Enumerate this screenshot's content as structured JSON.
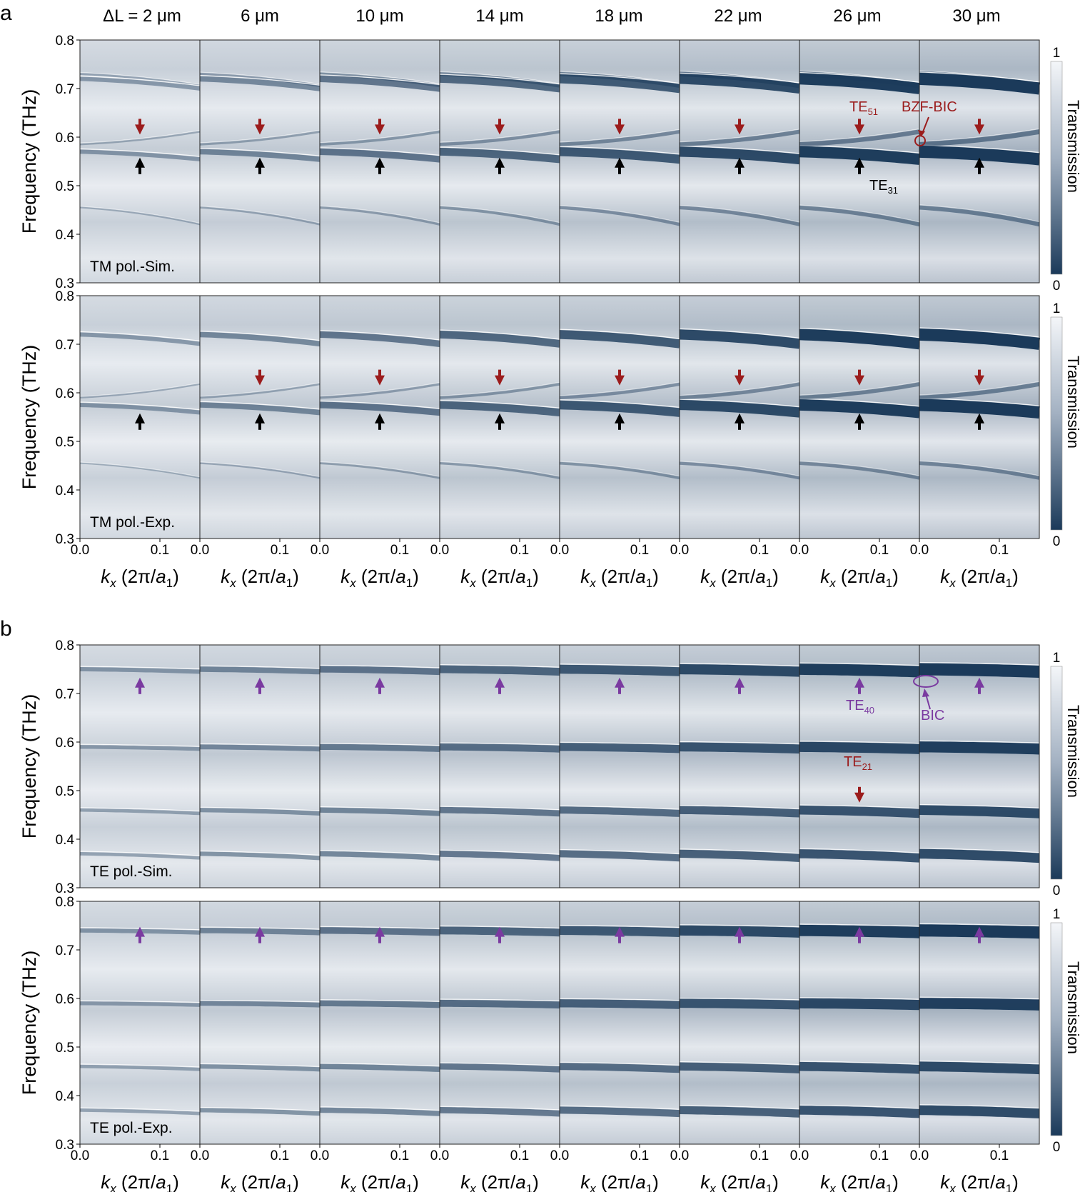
{
  "panel_letters": [
    "a",
    "b"
  ],
  "column_headers": [
    "ΔL = 2 μm",
    "6 μm",
    "10 μm",
    "14 μm",
    "18 μm",
    "22 μm",
    "26 μm",
    "30 μm"
  ],
  "axis": {
    "ylabel": "Frequency (THz)",
    "y_ticks": [
      "0.3",
      "0.4",
      "0.5",
      "0.6",
      "0.7",
      "0.8"
    ],
    "x_ticks": [
      "0.0",
      "0.1"
    ],
    "xlabel": "kx (2π/a1)",
    "xlabel_parts": {
      "k": "k",
      "x_sub": "x",
      "mid": " (2π/",
      "a": "a",
      "one_sub": "1",
      "close": ")"
    }
  },
  "colorbar": {
    "label": "Transmission",
    "max_label": "1",
    "min_label": "0",
    "color_high": "#f4f6f9",
    "color_low": "#1b3a5a"
  },
  "colors": {
    "tm_arrow_down": "#9b1c1c",
    "tm_arrow_up": "#000000",
    "te_arrow": "#7a3aa0",
    "te21_arrow": "#9b1c1c"
  },
  "annotations": {
    "te51": {
      "base": "TE",
      "sub": "51"
    },
    "te31": {
      "base": "TE",
      "sub": "31"
    },
    "te40": {
      "base": "TE",
      "sub": "40"
    },
    "te21": {
      "base": "TE",
      "sub": "21"
    },
    "bzf_bic": "BZF-BIC",
    "bic": "BIC"
  },
  "chart_data": [
    {
      "type": "heatmap",
      "panel": "a",
      "row_label": "TM pol.-Sim.",
      "columns_dL_um": [
        2,
        6,
        10,
        14,
        18,
        22,
        26,
        30
      ],
      "xlabel": "kx (2π/a1)",
      "xlim": [
        0.0,
        0.15
      ],
      "ylabel": "Frequency (THz)",
      "ylim": [
        0.3,
        0.8
      ],
      "colorbar": "Transmission",
      "clim": [
        0,
        1
      ],
      "bands": [
        {
          "f0": 0.73,
          "slope": -0.28,
          "depth_scale": 0.45
        },
        {
          "f0": 0.72,
          "slope": -0.23,
          "depth_scale": 1.0
        },
        {
          "f0": 0.57,
          "slope": -0.18,
          "depth_scale": 1.0
        },
        {
          "f0": 0.585,
          "slope": 0.3,
          "depth_scale": 0.4
        },
        {
          "f0": 0.455,
          "slope": -0.4,
          "depth_scale": 0.35
        }
      ],
      "arrows_down_freq": 0.62,
      "arrows_up_freq": 0.54
    },
    {
      "type": "heatmap",
      "panel": "a",
      "row_label": "TM pol.-Exp.",
      "columns_dL_um": [
        2,
        6,
        10,
        14,
        18,
        22,
        26,
        30
      ],
      "xlabel": "kx (2π/a1)",
      "xlim": [
        0.0,
        0.15
      ],
      "ylabel": "Frequency (THz)",
      "ylim": [
        0.3,
        0.8
      ],
      "colorbar": "Transmission",
      "clim": [
        0,
        1
      ],
      "bands": [
        {
          "f0": 0.72,
          "slope": -0.22,
          "depth_scale": 1.0
        },
        {
          "f0": 0.575,
          "slope": -0.18,
          "depth_scale": 1.0
        },
        {
          "f0": 0.59,
          "slope": 0.32,
          "depth_scale": 0.35
        },
        {
          "f0": 0.455,
          "slope": -0.35,
          "depth_scale": 0.3
        }
      ],
      "arrows_down_freq": 0.63,
      "arrows_up_freq": 0.54
    },
    {
      "type": "heatmap",
      "panel": "b",
      "row_label": "TE pol.-Sim.",
      "columns_dL_um": [
        2,
        6,
        10,
        14,
        18,
        22,
        26,
        30
      ],
      "xlabel": "kx (2π/a1)",
      "xlim": [
        0.0,
        0.15
      ],
      "ylabel": "Frequency (THz)",
      "ylim": [
        0.3,
        0.8
      ],
      "colorbar": "Transmission",
      "clim": [
        0,
        1
      ],
      "bands": [
        {
          "f0": 0.75,
          "slope": -0.06,
          "depth_scale": 1.0
        },
        {
          "f0": 0.59,
          "slope": -0.05,
          "depth_scale": 0.9
        },
        {
          "f0": 0.46,
          "slope": -0.08,
          "depth_scale": 0.8
        },
        {
          "f0": 0.37,
          "slope": -0.1,
          "depth_scale": 0.8
        }
      ],
      "arrows_up_freq": 0.715,
      "te21_arrow_freq": 0.49
    },
    {
      "type": "heatmap",
      "panel": "b",
      "row_label": "TE pol.-Exp.",
      "columns_dL_um": [
        2,
        6,
        10,
        14,
        18,
        22,
        26,
        30
      ],
      "xlabel": "kx (2π/a1)",
      "xlim": [
        0.0,
        0.15
      ],
      "ylabel": "Frequency (THz)",
      "ylim": [
        0.3,
        0.8
      ],
      "colorbar": "Transmission",
      "clim": [
        0,
        1
      ],
      "bands": [
        {
          "f0": 0.74,
          "slope": -0.05,
          "depth_scale": 1.0
        },
        {
          "f0": 0.59,
          "slope": -0.04,
          "depth_scale": 0.9
        },
        {
          "f0": 0.46,
          "slope": -0.07,
          "depth_scale": 0.8
        },
        {
          "f0": 0.37,
          "slope": -0.08,
          "depth_scale": 0.8
        }
      ],
      "arrows_up_freq": 0.73
    }
  ]
}
